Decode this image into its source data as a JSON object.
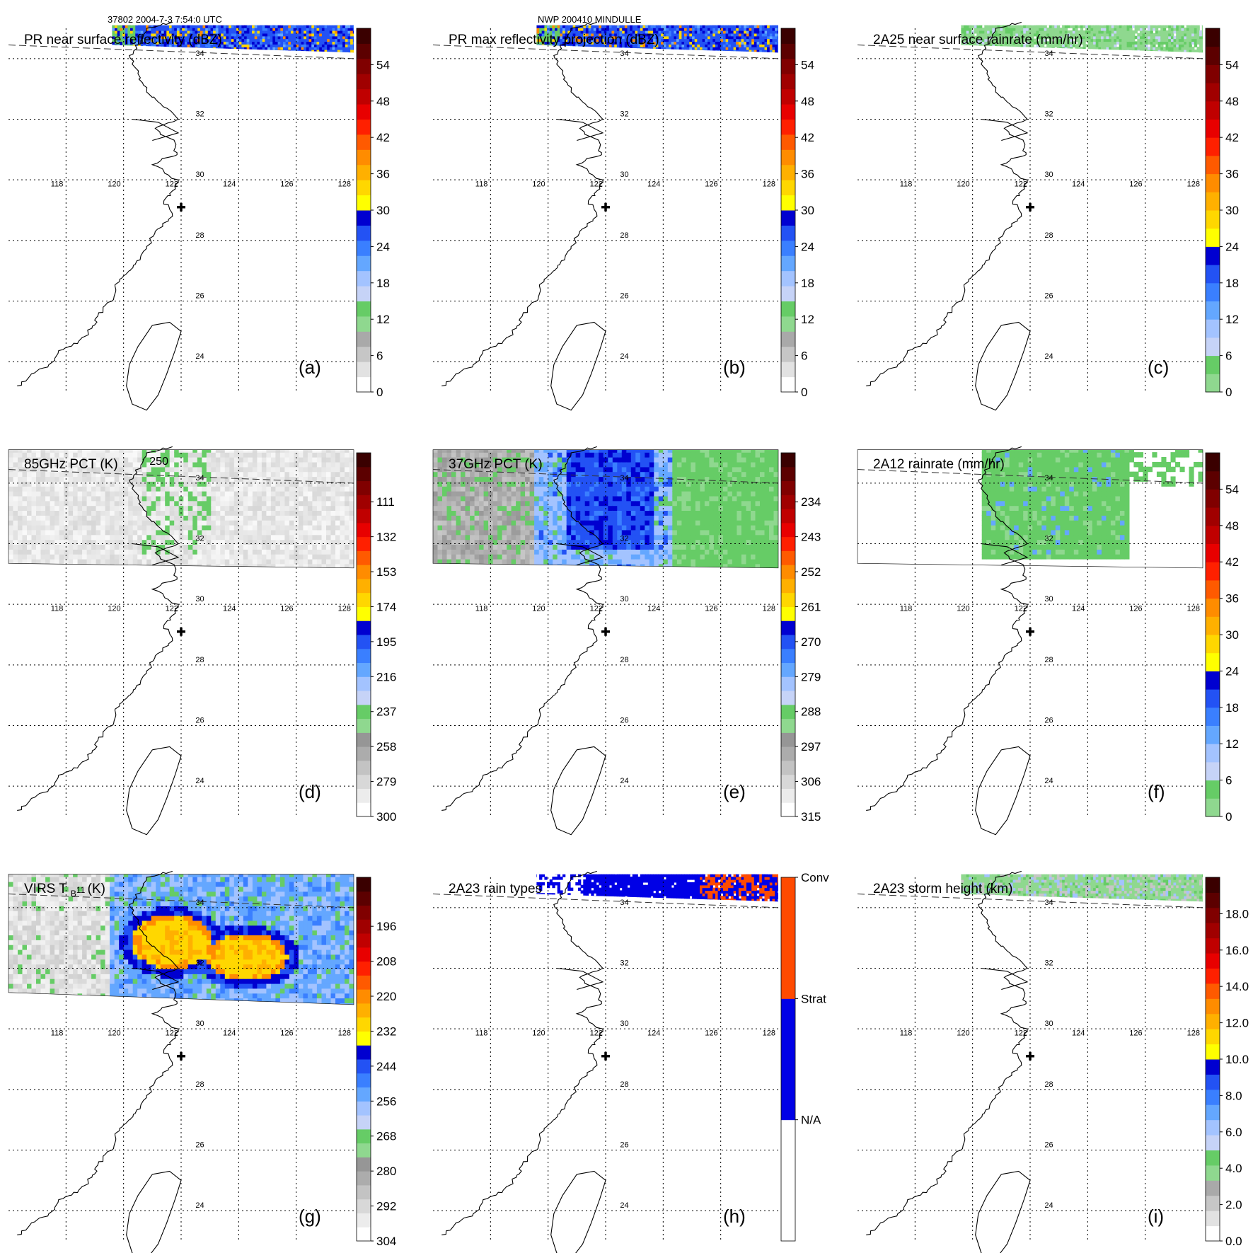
{
  "header": {
    "orbit_time": "37802 2004-7-3 7:54:0 UTC",
    "storm": "NWP 200410 MINDULLE"
  },
  "map": {
    "lon_ticks": [
      "118",
      "120",
      "122",
      "124",
      "126",
      "128"
    ],
    "lat_ticks": [
      "24",
      "26",
      "28",
      "30",
      "32",
      "34"
    ],
    "storm_center_marker": "plus-marker",
    "coastline_color": "#000000"
  },
  "panels": [
    {
      "id": "a",
      "title": "PR near surface reflectivity (dBZ)",
      "letter": "(a)",
      "scale": "zref",
      "colorbar_labels": [
        "0",
        "6",
        "12",
        "18",
        "24",
        "30",
        "36",
        "42",
        "48",
        "54"
      ],
      "swath": "pr",
      "field": "pr_near_surface"
    },
    {
      "id": "b",
      "title": "PR max reflectivity projection (dBZ)",
      "letter": "(b)",
      "scale": "zref",
      "colorbar_labels": [
        "0",
        "6",
        "12",
        "18",
        "24",
        "30",
        "36",
        "42",
        "48",
        "54"
      ],
      "swath": "pr",
      "field": "pr_max"
    },
    {
      "id": "c",
      "title": "2A25 near surface rainrate (mm/hr)",
      "letter": "(c)",
      "scale": "rain",
      "colorbar_labels": [
        "0",
        "6",
        "12",
        "18",
        "24",
        "30",
        "36",
        "42",
        "48",
        "54"
      ],
      "swath": "pr",
      "field": "rain_light"
    },
    {
      "id": "d",
      "title": "85GHz PCT (K)",
      "letter": "(d)",
      "scale": "tbrev",
      "colorbar_labels": [
        "300",
        "279",
        "258",
        "237",
        "216",
        "195",
        "174",
        "153",
        "132",
        "111"
      ],
      "contour_label": "250",
      "swath": "tmi",
      "field": "pct85"
    },
    {
      "id": "e",
      "title": "37GHz PCT (K)",
      "letter": "(e)",
      "scale": "tbrev",
      "colorbar_labels": [
        "315",
        "306",
        "297",
        "288",
        "279",
        "270",
        "261",
        "252",
        "243",
        "234"
      ],
      "swath": "tmi",
      "field": "pct37"
    },
    {
      "id": "f",
      "title": "2A12 rainrate (mm/hr)",
      "letter": "(f)",
      "scale": "rain",
      "colorbar_labels": [
        "0",
        "6",
        "12",
        "18",
        "24",
        "30",
        "36",
        "42",
        "48",
        "54"
      ],
      "swath": "tmi",
      "field": "rain2a12"
    },
    {
      "id": "g",
      "title": "VIRS T",
      "title_sub": "B",
      "title_tail": "11",
      "title_unit": "(K)",
      "letter": "(g)",
      "scale": "tbrev",
      "colorbar_labels": [
        "304",
        "292",
        "280",
        "268",
        "256",
        "244",
        "232",
        "220",
        "208",
        "196"
      ],
      "swath": "virs",
      "field": "virs"
    },
    {
      "id": "h",
      "title": "2A23 rain types",
      "letter": "(h)",
      "scale": "types",
      "colorbar_labels": [
        "N/A",
        "Strat",
        "Conv"
      ],
      "swath": "pr",
      "field": "raintype"
    },
    {
      "id": "i",
      "title": "2A23 storm height (km)",
      "letter": "(i)",
      "scale": "height",
      "colorbar_labels": [
        "0.0",
        "2.0",
        "4.0",
        "6.0",
        "8.0",
        "10.0",
        "12.0",
        "14.0",
        "16.0",
        "18.0"
      ],
      "swath": "pr",
      "field": "stormheight"
    }
  ],
  "palettes": {
    "zref": [
      "#ffffff",
      "#e2e2e2",
      "#c6c6c6",
      "#a9a9a9",
      "#8fd88f",
      "#66cc66",
      "#c6d3f7",
      "#a3c3ff",
      "#64a7ff",
      "#3a7fff",
      "#2352f4",
      "#0000d0",
      "#ffff00",
      "#ffd700",
      "#ffb000",
      "#ff8c00",
      "#ff5a00",
      "#ff2000",
      "#e80000",
      "#c00000",
      "#a00000",
      "#800000",
      "#5c0000",
      "#3a0000"
    ],
    "rain": [
      "#8fd88f",
      "#66cc66",
      "#c6d3f7",
      "#a3c3ff",
      "#64a7ff",
      "#3a7fff",
      "#2352f4",
      "#0000d0",
      "#ffff00",
      "#ffd700",
      "#ffb000",
      "#ff8c00",
      "#ff5a00",
      "#ff2000",
      "#e80000",
      "#c00000",
      "#a00000",
      "#800000",
      "#5c0000",
      "#3a0000"
    ],
    "tbrev": [
      "#ffffff",
      "#ececec",
      "#d8d8d8",
      "#c3c3c3",
      "#acacac",
      "#969696",
      "#8fd88f",
      "#66cc66",
      "#c6d3f7",
      "#a3c3ff",
      "#64a7ff",
      "#3a7fff",
      "#2352f4",
      "#0000d0",
      "#ffff00",
      "#ffd700",
      "#ffb000",
      "#ff8c00",
      "#ff5a00",
      "#ff2000",
      "#e80000",
      "#c00000",
      "#a00000",
      "#800000",
      "#5c0000",
      "#3a0000"
    ],
    "types": [
      "#ffffff",
      "#0000e6",
      "#ff4a00"
    ],
    "height": [
      "#ffffff",
      "#e2e2e2",
      "#c6c6c6",
      "#a9a9a9",
      "#8fd88f",
      "#66cc66",
      "#c6d3f7",
      "#a3c3ff",
      "#64a7ff",
      "#3a7fff",
      "#2352f4",
      "#0000d0",
      "#ffff00",
      "#ffd700",
      "#ffb000",
      "#ff8c00",
      "#ff5a00",
      "#ff2000",
      "#e80000",
      "#c00000",
      "#a00000",
      "#800000",
      "#5c0000",
      "#3a0000"
    ]
  }
}
